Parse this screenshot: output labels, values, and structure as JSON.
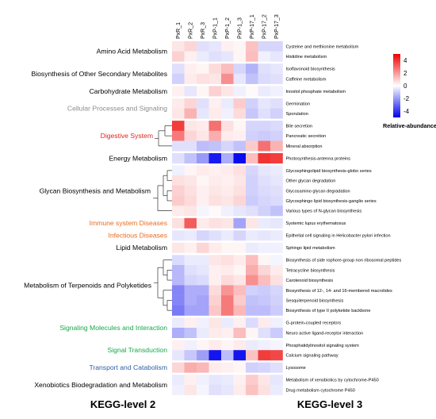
{
  "chart_data": {
    "type": "heatmap",
    "columns": [
      "PxR_1",
      "PxR_2",
      "PxR_3",
      "PxP-1_1",
      "PxP-1_2",
      "PxP-1_3",
      "PxP-17_1",
      "PxP-17_2",
      "PxP-17_3"
    ],
    "rows": [
      {
        "name": "Cysteine and methionine metabolism",
        "values": [
          0.5,
          0.8,
          -0.6,
          -0.5,
          0.3,
          0.2,
          1.2,
          -0.8,
          -0.8
        ]
      },
      {
        "name": "Histidine metabolism",
        "values": [
          0.9,
          0.3,
          -0.4,
          -0.6,
          -0.5,
          0.2,
          1.3,
          -0.3,
          -0.5
        ]
      },
      {
        "name": "Isoflavonoid biosynthesis",
        "values": [
          -0.6,
          0.3,
          0.2,
          0.7,
          1.3,
          -0.8,
          -1.5,
          -0.6,
          -0.5
        ]
      },
      {
        "name": "Caffeine metabolism",
        "values": [
          -0.9,
          0.4,
          0.6,
          0.5,
          2.2,
          -0.5,
          -1.2,
          -0.7,
          -0.6
        ]
      },
      {
        "name": "Inositol phosphate metabolism",
        "values": [
          0.3,
          -0.5,
          0.2,
          0.9,
          0.5,
          -0.3,
          0.1,
          -0.4,
          -0.3
        ]
      },
      {
        "name": "Germination",
        "values": [
          0.4,
          0.8,
          -0.6,
          0.3,
          -0.4,
          1.0,
          -0.9,
          -0.5,
          -0.6
        ]
      },
      {
        "name": "Sporulation",
        "values": [
          0.5,
          1.5,
          -0.5,
          0.4,
          -0.3,
          0.7,
          -1.1,
          -0.6,
          -0.9
        ]
      },
      {
        "name": "Bile secretion",
        "values": [
          3.8,
          0.5,
          0.4,
          2.8,
          0.6,
          0.2,
          -0.8,
          -0.8,
          -0.7
        ]
      },
      {
        "name": "Pancreatic secretion",
        "values": [
          2.6,
          0.8,
          0.5,
          1.6,
          0.4,
          0.3,
          -0.9,
          -1.0,
          -0.9
        ]
      },
      {
        "name": "Mineral absorption",
        "values": [
          -0.6,
          -0.6,
          -1.3,
          -1.2,
          -0.8,
          -1.2,
          1.0,
          2.8,
          1.5
        ]
      },
      {
        "name": "Photosynthesis-antenna proteins",
        "values": [
          -0.6,
          -1.2,
          -2.0,
          -4.5,
          -1.6,
          -4.8,
          1.3,
          4.0,
          3.8
        ]
      },
      {
        "name": "Glycosphingolipid biosynthesis-globo series",
        "values": [
          -0.3,
          0.2,
          0.4,
          0.3,
          0.4,
          0.6,
          -0.8,
          -0.5,
          -0.4
        ]
      },
      {
        "name": "Other glycan degradation",
        "values": [
          0.6,
          0.5,
          0.2,
          0.4,
          0.3,
          0.5,
          -0.9,
          -0.6,
          -0.5
        ]
      },
      {
        "name": "Glycosamino glycan degradation",
        "values": [
          0.9,
          0.6,
          0.3,
          0.5,
          0.4,
          0.6,
          -0.9,
          -0.7,
          -0.6
        ]
      },
      {
        "name": "Glycosphingo lipid biosynthesis-ganglio series",
        "values": [
          1.0,
          0.7,
          0.3,
          0.6,
          0.5,
          0.8,
          -1.0,
          -0.8,
          -0.7
        ]
      },
      {
        "name": "Various types of N-glycan biosynthesis",
        "values": [
          0.4,
          0.5,
          -0.2,
          0.1,
          -0.3,
          -0.5,
          -0.6,
          -0.9,
          -1.2
        ]
      },
      {
        "name": "Systemic lupus erythematosus",
        "values": [
          0.6,
          3.2,
          0.4,
          0.6,
          0.5,
          -1.8,
          0.5,
          -0.4,
          -0.5
        ]
      },
      {
        "name": "Epithelial cell signaling in Helicobacter pylori infection",
        "values": [
          -0.5,
          -0.4,
          -0.8,
          -0.6,
          -0.4,
          -0.8,
          -0.4,
          -0.5,
          -0.4
        ]
      },
      {
        "name": "Sphingo lipid metabolism",
        "values": [
          0.5,
          0.3,
          0.8,
          0.4,
          0.2,
          0.2,
          -0.4,
          -0.3,
          -0.3
        ]
      },
      {
        "name": "Biosynthesis of side rophore-group non ribosomal peptides",
        "values": [
          -0.7,
          -0.4,
          -0.4,
          0.5,
          0.6,
          0.4,
          1.3,
          0.2,
          -0.2
        ]
      },
      {
        "name": "Tetracycline biosynthesis",
        "values": [
          -1.4,
          -0.6,
          -0.5,
          0.3,
          0.4,
          0.2,
          1.6,
          0.8,
          0.4
        ]
      },
      {
        "name": "Carotenoid biosynthesis",
        "values": [
          -1.4,
          -0.8,
          -0.7,
          0.3,
          0.7,
          0.5,
          2.2,
          1.3,
          0.6
        ]
      },
      {
        "name": "Biosynthesis of 12-, 14- and 16-membered macrolides",
        "values": [
          -2.4,
          -1.6,
          -1.6,
          0.7,
          2.1,
          1.3,
          -0.9,
          -1.0,
          -0.8
        ]
      },
      {
        "name": "Sesquiterpenoid biosynthesis",
        "values": [
          -2.4,
          -1.6,
          -1.8,
          0.9,
          2.6,
          1.0,
          -1.2,
          -1.1,
          -0.9
        ]
      },
      {
        "name": "Biosynthesis of type II polyketide backbone",
        "values": [
          -2.6,
          -1.8,
          -1.8,
          1.1,
          2.6,
          1.4,
          -1.3,
          -1.3,
          -1.0
        ]
      },
      {
        "name": "G-protein-coupled receptors",
        "values": [
          -0.4,
          0.3,
          -0.3,
          0.5,
          -0.4,
          0.3,
          -0.7,
          0.4,
          -0.3
        ]
      },
      {
        "name": "Neuro active ligand-receptor interaction",
        "values": [
          -1.6,
          -1.2,
          -0.4,
          0.4,
          0.3,
          1.3,
          0.2,
          -0.6,
          -1.0
        ]
      },
      {
        "name": "Phosphatidylinositol signaling system",
        "values": [
          0.3,
          -0.3,
          0.2,
          0.4,
          0.2,
          0.4,
          -0.4,
          -0.3,
          -0.2
        ]
      },
      {
        "name": "Calcium signaling pathway",
        "values": [
          -0.5,
          -1.1,
          -1.9,
          -4.6,
          -1.3,
          -4.6,
          1.2,
          3.8,
          3.6
        ]
      },
      {
        "name": "Lysosome",
        "values": [
          0.8,
          1.6,
          1.4,
          0.4,
          0.3,
          0.2,
          -0.9,
          -0.8,
          -0.6
        ]
      },
      {
        "name": "Metabolism of xenobiotics by cytochrome-P450",
        "values": [
          -0.4,
          0.3,
          -0.3,
          -0.5,
          -0.4,
          0.3,
          1.0,
          0.5,
          -0.5
        ]
      },
      {
        "name": "Drug metabolism cytochrome P450",
        "values": [
          -0.3,
          0.5,
          -0.2,
          -0.6,
          -0.5,
          0.4,
          1.2,
          0.6,
          -0.4
        ]
      }
    ],
    "level2": [
      {
        "name": "Amino Acid Metabolism",
        "color": "#000000",
        "start": 0,
        "end": 1
      },
      {
        "name": "Biosynthesis of Other Secondary Metabolites",
        "color": "#000000",
        "start": 2,
        "end": 3
      },
      {
        "name": "Carbohydrate Metabolism",
        "color": "#000000",
        "start": 4,
        "end": 4
      },
      {
        "name": "Cellular Processes and Signaling",
        "color": "#8c8c8c",
        "start": 5,
        "end": 6
      },
      {
        "name": "Digestive System",
        "color": "#e0261e",
        "start": 7,
        "end": 9
      },
      {
        "name": "Energy Metabolism",
        "color": "#000000",
        "start": 10,
        "end": 10
      },
      {
        "name": "Glycan Biosynthesis and Metabolism",
        "color": "#000000",
        "start": 11,
        "end": 15
      },
      {
        "name": "Immune system Diseases",
        "color": "#e86b1e",
        "start": 16,
        "end": 16
      },
      {
        "name": "Infectious Diseases",
        "color": "#e86b1e",
        "start": 17,
        "end": 17
      },
      {
        "name": "Lipid Metabolism",
        "color": "#000000",
        "start": 18,
        "end": 18
      },
      {
        "name": "Metabolism of Terpenoids and Polyketides",
        "color": "#000000",
        "start": 19,
        "end": 24
      },
      {
        "name": "Signaling Molecules and Interaction",
        "color": "#16a84a",
        "start": 25,
        "end": 26
      },
      {
        "name": "Signal Transduction",
        "color": "#16a84a",
        "start": 27,
        "end": 28
      },
      {
        "name": "Transport and Catabolism",
        "color": "#2e5fa8",
        "start": 29,
        "end": 29
      },
      {
        "name": "Xenobiotics Biodegradation and Metabolism",
        "color": "#000000",
        "start": 30,
        "end": 31
      }
    ],
    "legend": {
      "title": "Relative-abundance",
      "ticks": [
        4,
        2,
        0,
        -2,
        -4
      ],
      "min": -5,
      "max": 5
    },
    "colors": {
      "low": "#0000ee",
      "mid": "#ffffff",
      "high": "#ee0000"
    },
    "footer_left": "KEGG-level 2",
    "footer_right": "KEGG-level 3"
  }
}
